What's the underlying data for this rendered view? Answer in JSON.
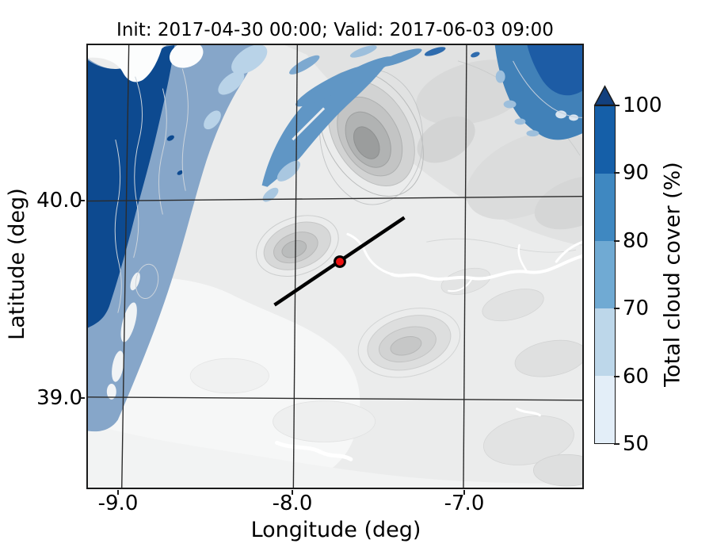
{
  "title": "Init: 2017-04-30 00:00; Valid: 2017-06-03 09:00",
  "axes": {
    "xlabel": "Longitude (deg)",
    "ylabel": "Latitude (deg)",
    "x_ticks": [
      "-9.0",
      "-8.0",
      "-7.0"
    ],
    "y_ticks": [
      "40.0",
      "39.0"
    ]
  },
  "colorbar": {
    "label": "Total cloud cover (%)",
    "tick_labels": [
      "100",
      "90",
      "80",
      "70",
      "60",
      "50"
    ],
    "segment_colors_top_to_bottom": [
      "#155fa8",
      "#3f88c1",
      "#70aad3",
      "#bdd7ea",
      "#e3eef8"
    ],
    "extend_arrow_color": "#12407e"
  },
  "map": {
    "marker_color": "#ee1111",
    "trajectory_color": "#000000",
    "cloud_dark_blue": "#0d4a90",
    "cloud_medium_blue": "#86a6c9",
    "cloud_streak_blue": "#6096c5"
  },
  "chart_data": {
    "type": "filled_contour_map",
    "title": "Init: 2017-04-30 00:00; Valid: 2017-06-03 09:00",
    "xlabel": "Longitude (deg)",
    "ylabel": "Latitude (deg)",
    "xlim": [
      -9.2,
      -6.3
    ],
    "ylim": [
      38.55,
      40.8
    ],
    "x_ticks": [
      -9.0,
      -8.0,
      -7.0
    ],
    "y_ticks": [
      40.0,
      39.0
    ],
    "grid": true,
    "colorbar": {
      "label": "Total cloud cover (%)",
      "levels": [
        50,
        60,
        70,
        80,
        90,
        100
      ],
      "extend": "max",
      "colors_low_to_high": [
        "#e3eef8",
        "#bdd7ea",
        "#70aad3",
        "#3f88c1",
        "#155fa8"
      ],
      "extend_color": "#12407e"
    },
    "marker": {
      "lon": -7.74,
      "lat": 39.69,
      "style": "red filled circle with black edge"
    },
    "transect_line": {
      "lon_from": -8.12,
      "lat_from": 39.47,
      "lon_to": -7.35,
      "lat_to": 39.92,
      "style": "solid black line through marker"
    },
    "basemap": "grayscale terrain shading with elevation contour lines and white river channels",
    "cloud_cover_regions": [
      {
        "area": "west edge / Atlantic coast band",
        "cover_pct": "90-100 dark blue wedge tapering south near 39.6N, flanked east by a 70-80 band reaching about 39.0N"
      },
      {
        "area": "north-center, about -8.2 to -7.4 lon north of 40.3N",
        "cover_pct": "70-80 in NE-SW oriented streaks over mountains"
      },
      {
        "area": "northeast corner, east of -7.1 north of 40.35N",
        "cover_pct": "80-100 blob"
      },
      {
        "area": "rest of domain",
        "cover_pct": "below 50 (unshaded terrain)"
      }
    ]
  }
}
